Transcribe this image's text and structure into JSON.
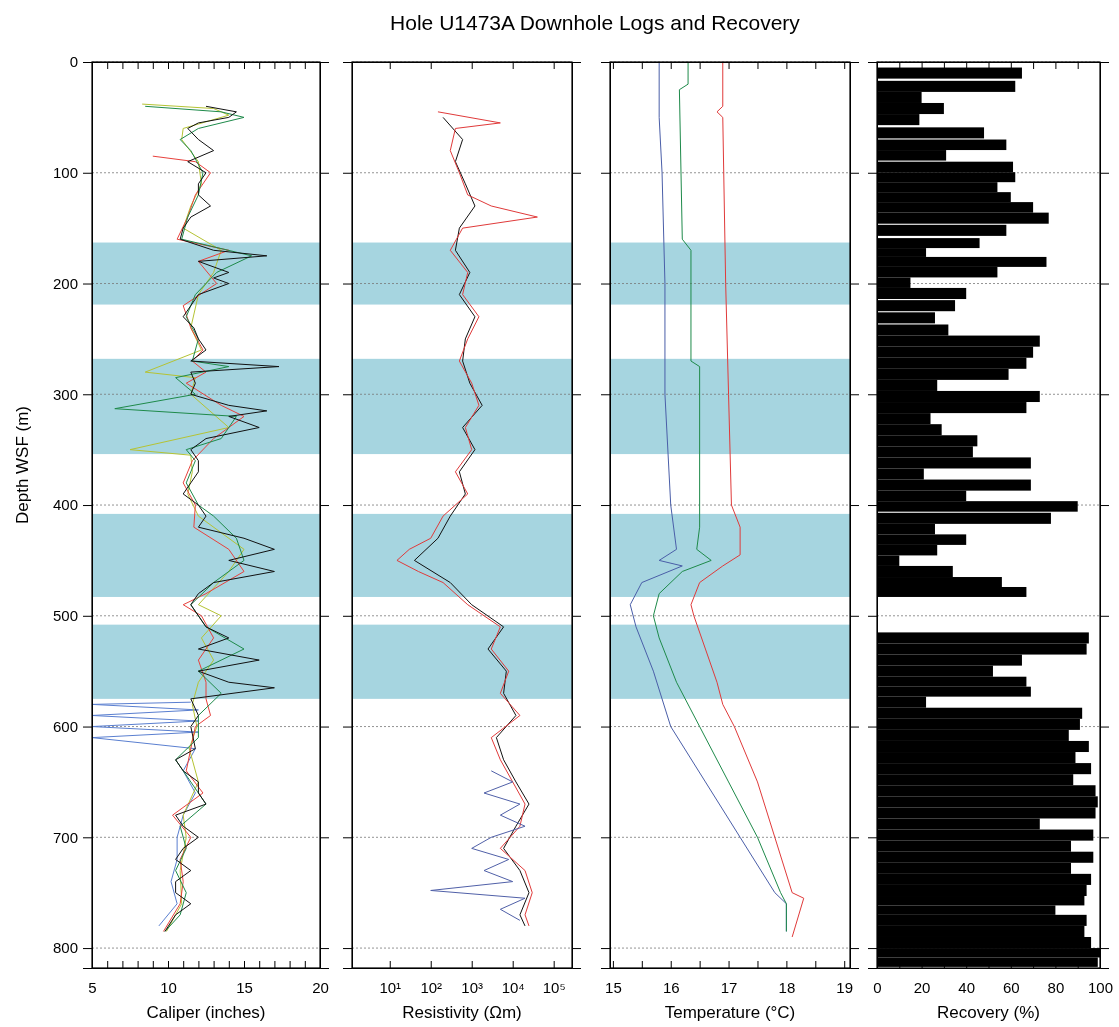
{
  "chart_data": [
    {
      "type": "other",
      "title": "Hole U1473A Downhole Logs and Recovery"
    },
    {
      "type": "line",
      "xlabel": "Caliper (inches)",
      "ylabel": "Depth WSF (m)",
      "xlim": [
        5,
        20
      ],
      "xticks": [
        5,
        {
          "value": 6,
          "label": null
        },
        {
          "value": 7,
          "label": null
        },
        {
          "value": 8,
          "label": null
        },
        {
          "value": 9,
          "label": null
        },
        10,
        {
          "value": 11,
          "label": null
        },
        {
          "value": 12,
          "label": null
        },
        {
          "value": 13,
          "label": null
        },
        {
          "value": 14,
          "label": null
        },
        15,
        {
          "value": 16,
          "label": null
        },
        {
          "value": 17,
          "label": null
        },
        {
          "value": 18,
          "label": null
        },
        {
          "value": 19,
          "label": null
        },
        20
      ],
      "ylim": [
        818,
        0
      ],
      "yticks": [
        0,
        100,
        200,
        300,
        400,
        500,
        600,
        700,
        800
      ],
      "grid": "y",
      "bands": [
        {
          "axis": "y",
          "from": 163,
          "to": 219,
          "color": "#a6d5e0"
        },
        {
          "axis": "y",
          "from": 268,
          "to": 354,
          "color": "#a6d5e0"
        },
        {
          "axis": "y",
          "from": 408,
          "to": 483,
          "color": "#a6d5e0"
        },
        {
          "axis": "y",
          "from": 508,
          "to": 575,
          "color": "#a6d5e0"
        }
      ],
      "series": [
        {
          "color": "#5a7fd0",
          "x": [
            11.5,
            5,
            12,
            5,
            12,
            5,
            12,
            5,
            11.8,
            11,
            11.8,
            11,
            10.6,
            10.6,
            10.2,
            10.6,
            9.4
          ],
          "values": [
            578,
            580,
            585,
            590,
            595,
            600,
            605,
            610,
            620,
            640,
            660,
            680,
            700,
            720,
            740,
            760,
            780
          ]
        },
        {
          "color": "#b5c334",
          "x": [
            8.3,
            13,
            14,
            11,
            10.9,
            12,
            12.2,
            11.5,
            11,
            13.5,
            13,
            12,
            11.5,
            12.2,
            8.5,
            11.8,
            11.5,
            14,
            7.5,
            11.5,
            11.6,
            11.3,
            12,
            15,
            14,
            12,
            13.5,
            12.2,
            13,
            12,
            11.6,
            11.9,
            11.4,
            12,
            11,
            11.2,
            10.8,
            10.9,
            9.9
          ],
          "values": [
            38,
            42,
            48,
            60,
            70,
            90,
            110,
            130,
            150,
            170,
            190,
            210,
            240,
            260,
            280,
            285,
            300,
            330,
            350,
            355,
            370,
            390,
            410,
            440,
            460,
            490,
            500,
            520,
            540,
            560,
            580,
            600,
            620,
            650,
            680,
            700,
            730,
            760,
            785
          ]
        },
        {
          "color": "#e8413c",
          "x": [
            9,
            11.8,
            12.8,
            11.8,
            11.3,
            10.6,
            14,
            12,
            13.2,
            11,
            11.5,
            12.3,
            11.6,
            12.5,
            11.2,
            13.5,
            15,
            13,
            11.6,
            11,
            11.8,
            11.7,
            14,
            15,
            12.5,
            11,
            12.2,
            13,
            12,
            12.5,
            12.5,
            12.8,
            11.8,
            11.5,
            11.2,
            12.3,
            10.3,
            11.5,
            10.8,
            11,
            10.8,
            9.7
          ],
          "values": [
            85,
            90,
            100,
            120,
            140,
            160,
            170,
            180,
            200,
            220,
            240,
            260,
            270,
            280,
            290,
            310,
            320,
            340,
            360,
            380,
            400,
            420,
            440,
            460,
            480,
            490,
            500,
            520,
            540,
            560,
            575,
            590,
            600,
            620,
            640,
            660,
            680,
            700,
            720,
            740,
            760,
            785
          ]
        },
        {
          "color": "#1e8a4a",
          "x": [
            8.5,
            13.5,
            15,
            12,
            10.8,
            11.5,
            12.3,
            12,
            11.3,
            10.9,
            15.5,
            13.2,
            11.8,
            11.2,
            12,
            11.6,
            14,
            10.5,
            11.8,
            6.5,
            14.5,
            13.5,
            11.2,
            11.8,
            11.2,
            12,
            13,
            14.5,
            15,
            13,
            11.5,
            12.5,
            15,
            12,
            13.5,
            12,
            12,
            10.5,
            11.5,
            12.5,
            10.8,
            11.2,
            10.5,
            11.2,
            10.8,
            9.8
          ],
          "values": [
            40,
            45,
            50,
            60,
            70,
            80,
            100,
            120,
            140,
            160,
            175,
            190,
            210,
            230,
            250,
            270,
            275,
            285,
            300,
            313,
            320,
            340,
            350,
            360,
            380,
            400,
            410,
            430,
            450,
            470,
            490,
            510,
            530,
            550,
            570,
            590,
            610,
            630,
            650,
            670,
            690,
            710,
            730,
            750,
            770,
            785
          ]
        },
        {
          "color": "#111111",
          "x": [
            12.5,
            14.5,
            14,
            12,
            11.3,
            12,
            13,
            11.3,
            12.5,
            12,
            12,
            12.8,
            11.5,
            11,
            10.8,
            13,
            16.5,
            12,
            14,
            13,
            14,
            12,
            11.5,
            11,
            11.7,
            12,
            12.5,
            11.5,
            17.3,
            11.5,
            11.8,
            11.5,
            14,
            16.5,
            14,
            16,
            12.5,
            11.5,
            12,
            12,
            11.5,
            11,
            12,
            12.5,
            12,
            15,
            17,
            14,
            17,
            13,
            12,
            11.5,
            12,
            12.5,
            14,
            12,
            16,
            12,
            14,
            17,
            11.5,
            12,
            11.5,
            11.8,
            10.5,
            11,
            12,
            12,
            12.5,
            10.5,
            11,
            12,
            11,
            10.5,
            11.5,
            10.5,
            10.5,
            11.5,
            10.5,
            9.8
          ],
          "values": [
            40,
            45,
            50,
            55,
            60,
            70,
            80,
            90,
            100,
            110,
            120,
            130,
            140,
            150,
            160,
            170,
            175,
            180,
            190,
            195,
            200,
            210,
            220,
            230,
            240,
            250,
            260,
            270,
            275,
            280,
            290,
            300,
            310,
            315,
            320,
            330,
            340,
            350,
            360,
            370,
            380,
            390,
            400,
            410,
            420,
            430,
            440,
            450,
            460,
            470,
            480,
            490,
            500,
            510,
            520,
            530,
            540,
            550,
            560,
            565,
            575,
            590,
            600,
            620,
            630,
            640,
            650,
            660,
            670,
            680,
            690,
            700,
            710,
            720,
            730,
            740,
            750,
            760,
            770,
            785
          ]
        }
      ]
    },
    {
      "type": "line",
      "xlabel": "Resistivity (Ωm)",
      "log": "x",
      "xlim": [
        1.2,
        280000
      ],
      "xticks": [
        {
          "value": 10,
          "label": "10¹"
        },
        {
          "value": 100,
          "label": "10²"
        },
        {
          "value": 1000,
          "label": "10³"
        },
        {
          "value": 10000,
          "label": "10⁴"
        },
        {
          "value": 100000,
          "label": "10⁵"
        }
      ],
      "ylim": [
        818,
        0
      ],
      "yticks": [
        0,
        100,
        200,
        300,
        400,
        500,
        600,
        700,
        800
      ],
      "tick_labels": "x",
      "grid": "y",
      "bands": [
        {
          "axis": "y",
          "from": 163,
          "to": 219,
          "color": "#a6d5e0"
        },
        {
          "axis": "y",
          "from": 268,
          "to": 354,
          "color": "#a6d5e0"
        },
        {
          "axis": "y",
          "from": 408,
          "to": 483,
          "color": "#a6d5e0"
        },
        {
          "axis": "y",
          "from": 508,
          "to": 575,
          "color": "#a6d5e0"
        }
      ],
      "series": [
        {
          "color": "#111111",
          "x": [
            200,
            600,
            400,
            700,
            1200,
            500,
            400,
            900,
            500,
            1200,
            700,
            600,
            900,
            1800,
            600,
            1200,
            500,
            700,
            300,
            150,
            40,
            300,
            1000,
            6000,
            2500,
            7000,
            6000,
            12000,
            4000,
            6000,
            12000,
            25000,
            12000,
            6000,
            15000,
            25000,
            15000,
            20000
          ],
          "values": [
            50,
            70,
            90,
            110,
            130,
            150,
            170,
            190,
            210,
            230,
            250,
            270,
            290,
            310,
            330,
            350,
            370,
            390,
            410,
            430,
            450,
            470,
            490,
            510,
            530,
            550,
            570,
            590,
            610,
            630,
            650,
            670,
            690,
            710,
            730,
            750,
            770,
            780
          ]
        },
        {
          "color": "#e03a3a",
          "x": [
            150,
            5000,
            400,
            300,
            500,
            800,
            3000,
            40000,
            600,
            300,
            800,
            600,
            1500,
            800,
            500,
            1000,
            1500,
            700,
            1000,
            400,
            800,
            200,
            100,
            30,
            15,
            50,
            200,
            800,
            5000,
            3000,
            8000,
            5000,
            15000,
            3000,
            5000,
            10000,
            20000,
            15000,
            5000,
            20000,
            30000,
            20000,
            25000
          ],
          "values": [
            45,
            55,
            60,
            80,
            100,
            120,
            130,
            140,
            150,
            170,
            190,
            210,
            230,
            250,
            270,
            290,
            310,
            330,
            350,
            370,
            390,
            410,
            430,
            440,
            450,
            460,
            470,
            490,
            510,
            530,
            550,
            570,
            590,
            610,
            630,
            650,
            670,
            690,
            710,
            730,
            750,
            770,
            780
          ]
        },
        {
          "color": "#5060a8",
          "x": [
            3000,
            10000,
            2000,
            15000,
            5000,
            20000,
            3000,
            1000,
            8000,
            2000,
            10000,
            100,
            20000,
            5000,
            15000
          ],
          "values": [
            640,
            650,
            660,
            670,
            680,
            690,
            700,
            710,
            720,
            730,
            740,
            748,
            755,
            765,
            775
          ]
        }
      ]
    },
    {
      "type": "line",
      "xlabel": "Temperature (°C)",
      "xlim": [
        14.95,
        19.1
      ],
      "xticks": [
        15,
        {
          "value": 15.5,
          "label": null
        },
        16,
        {
          "value": 16.5,
          "label": null
        },
        17,
        {
          "value": 17.5,
          "label": null
        },
        18,
        {
          "value": 18.5,
          "label": null
        },
        19
      ],
      "ylim": [
        818,
        0
      ],
      "yticks": [
        0,
        100,
        200,
        300,
        400,
        500,
        600,
        700,
        800
      ],
      "tick_labels": "x",
      "grid": "y",
      "bands": [
        {
          "axis": "y",
          "from": 163,
          "to": 219,
          "color": "#a6d5e0"
        },
        {
          "axis": "y",
          "from": 268,
          "to": 354,
          "color": "#a6d5e0"
        },
        {
          "axis": "y",
          "from": 408,
          "to": 483,
          "color": "#a6d5e0"
        },
        {
          "axis": "y",
          "from": 508,
          "to": 575,
          "color": "#a6d5e0"
        }
      ],
      "series": [
        {
          "color": "#4a5ea8",
          "x": [
            15.8,
            15.8,
            15.85,
            15.9,
            15.9,
            16,
            16.1,
            15.8,
            16.2,
            15.5,
            15.3,
            15.4,
            15.7,
            16,
            16.6,
            17.2,
            17.8,
            18,
            18
          ],
          "values": [
            0,
            50,
            100,
            200,
            300,
            400,
            440,
            450,
            455,
            470,
            490,
            510,
            550,
            600,
            650,
            700,
            750,
            760,
            785
          ]
        },
        {
          "color": "#1e8a4a",
          "x": [
            16.3,
            16.3,
            16.15,
            16.2,
            16.35,
            16.35,
            16.5,
            16.5,
            16.45,
            16.7,
            16.2,
            15.8,
            15.7,
            15.8,
            16.1,
            16.5,
            17,
            17.5,
            17.9,
            18,
            18
          ],
          "values": [
            0,
            20,
            25,
            160,
            170,
            270,
            275,
            420,
            440,
            450,
            460,
            480,
            500,
            520,
            560,
            600,
            650,
            700,
            750,
            760,
            785
          ]
        },
        {
          "color": "#e03a3a",
          "x": [
            16.9,
            16.9,
            16.8,
            16.9,
            16.95,
            17,
            17.05,
            17.2,
            17.2,
            16.9,
            16.5,
            16.35,
            16.4,
            16.6,
            16.8,
            16.9,
            17.1,
            17.5,
            17.8,
            18.1,
            18.3,
            18.1
          ],
          "values": [
            0,
            40,
            45,
            50,
            200,
            300,
            400,
            420,
            445,
            455,
            470,
            490,
            500,
            530,
            560,
            580,
            600,
            650,
            700,
            750,
            755,
            790
          ]
        }
      ]
    },
    {
      "type": "bar",
      "orientation": "horizontal",
      "xlabel": "Recovery (%)",
      "xlim": [
        0,
        100
      ],
      "xticks": [
        0,
        {
          "value": 10,
          "label": null
        },
        20,
        {
          "value": 30,
          "label": null
        },
        40,
        {
          "value": 50,
          "label": null
        },
        60,
        {
          "value": 70,
          "label": null
        },
        80,
        {
          "value": 90,
          "label": null
        },
        100
      ],
      "ylim": [
        818,
        0
      ],
      "yticks": [
        0,
        100,
        200,
        300,
        400,
        500,
        600,
        700,
        800
      ],
      "tick_labels": "x",
      "grid": "y",
      "color": "#000000",
      "x": [
        10,
        22,
        32,
        42,
        52,
        64,
        75,
        84,
        95,
        104,
        113,
        122,
        131,
        141,
        152,
        164,
        172,
        180,
        190,
        199,
        209,
        220,
        231,
        242,
        252,
        262,
        272,
        282,
        292,
        302,
        312,
        322,
        332,
        342,
        352,
        362,
        372,
        382,
        392,
        401,
        412,
        422,
        431,
        441,
        450,
        460,
        470,
        478,
        520,
        530,
        540,
        550,
        560,
        568,
        578,
        588,
        598,
        608,
        618,
        628,
        638,
        648,
        658,
        668,
        678,
        688,
        698,
        708,
        718,
        728,
        738,
        748,
        758,
        765,
        775,
        785,
        795,
        805,
        812
      ],
      "values": [
        65,
        62,
        20,
        30,
        19,
        48,
        58,
        31,
        61,
        62,
        54,
        60,
        70,
        77,
        58,
        46,
        22,
        76,
        54,
        15,
        40,
        35,
        26,
        32,
        73,
        70,
        67,
        59,
        27,
        73,
        67,
        24,
        29,
        45,
        43,
        69,
        21,
        69,
        40,
        90,
        78,
        26,
        40,
        27,
        10,
        34,
        56,
        67,
        95,
        94,
        65,
        52,
        67,
        69,
        22,
        92,
        91,
        86,
        95,
        89,
        96,
        88,
        98,
        99,
        98,
        73,
        97,
        87,
        97,
        87,
        96,
        94,
        93,
        80,
        94,
        93,
        96,
        100,
        99
      ]
    }
  ]
}
